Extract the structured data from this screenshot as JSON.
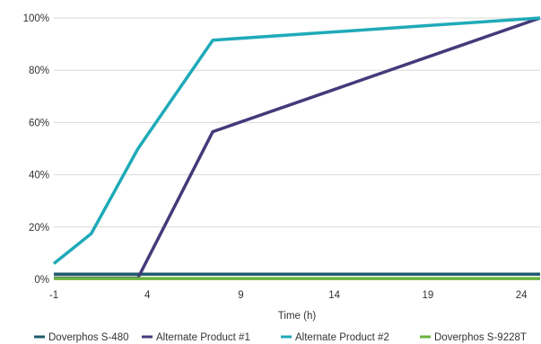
{
  "chart_data": {
    "type": "line",
    "title": "",
    "xlabel": "Time (h)",
    "ylabel": "",
    "xlim": [
      -1,
      25
    ],
    "ylim": [
      0,
      100
    ],
    "x_ticks": [
      -1,
      4,
      9,
      14,
      19,
      24
    ],
    "x_tick_labels": [
      "-1",
      "4",
      "9",
      "14",
      "19",
      "24"
    ],
    "y_ticks": [
      0,
      20,
      40,
      60,
      80,
      100
    ],
    "y_tick_labels": [
      "0%",
      "20%",
      "40%",
      "60%",
      "80%",
      "100%"
    ],
    "grid": "horizontal",
    "legend": "bottom",
    "series": [
      {
        "name": "Doverphos S-480",
        "color": "#1f5c6e",
        "x": [
          -1,
          25
        ],
        "y": [
          2,
          2
        ]
      },
      {
        "name": "Alternate Product #1",
        "color": "#443a7a",
        "x": [
          -1,
          3.5,
          7.5,
          25
        ],
        "y": [
          0.5,
          0.5,
          56.5,
          100
        ]
      },
      {
        "name": "Alternate Product #2",
        "color": "#1faab8",
        "x": [
          -1,
          1,
          3.5,
          7.5,
          25
        ],
        "y": [
          6,
          17.5,
          50,
          91.5,
          100
        ]
      },
      {
        "name": "Doverphos S-9228T",
        "color": "#6ab23e",
        "x": [
          -1,
          25
        ],
        "y": [
          0.3,
          0.3
        ]
      }
    ]
  }
}
